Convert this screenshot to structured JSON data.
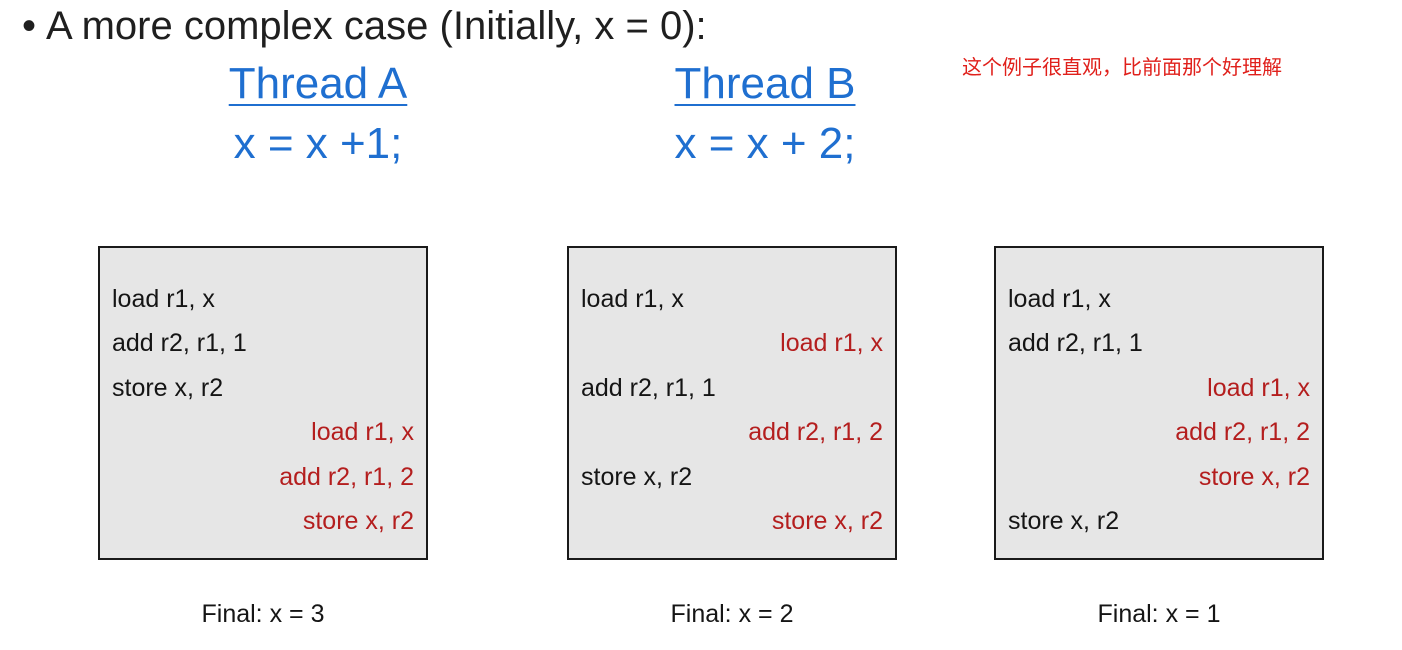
{
  "heading": {
    "bullet": "•",
    "text": "A more complex case (Initially, x = 0):"
  },
  "threads": [
    {
      "title": "Thread A",
      "code": "x = x +1;"
    },
    {
      "title": "Thread B",
      "code": "x = x + 2;"
    }
  ],
  "note": "这个例子很直观，比前面那个好理解",
  "colors": {
    "thread_blue": "#1f6fd0",
    "thread_b_red": "#b41e1e",
    "note_red": "#e0201b",
    "box_fill": "#e6e6e6"
  },
  "interleavings": [
    {
      "lines": [
        {
          "text": "load r1, x",
          "thread": "A"
        },
        {
          "text": "add r2, r1, 1",
          "thread": "A"
        },
        {
          "text": "store x, r2",
          "thread": "A"
        },
        {
          "text": "load r1, x",
          "thread": "B"
        },
        {
          "text": "add r2, r1, 2",
          "thread": "B"
        },
        {
          "text": "store x, r2",
          "thread": "B"
        }
      ],
      "final": "Final: x = 3"
    },
    {
      "lines": [
        {
          "text": "load r1, x",
          "thread": "A"
        },
        {
          "text": "load r1, x",
          "thread": "B"
        },
        {
          "text": "add r2, r1, 1",
          "thread": "A"
        },
        {
          "text": "add r2, r1, 2",
          "thread": "B"
        },
        {
          "text": "store x, r2",
          "thread": "A"
        },
        {
          "text": "store x, r2",
          "thread": "B"
        }
      ],
      "final": "Final: x = 2"
    },
    {
      "lines": [
        {
          "text": "load r1, x",
          "thread": "A"
        },
        {
          "text": "add r2, r1, 1",
          "thread": "A"
        },
        {
          "text": "load r1, x",
          "thread": "B"
        },
        {
          "text": "add r2, r1, 2",
          "thread": "B"
        },
        {
          "text": "store x, r2",
          "thread": "B"
        },
        {
          "text": "store x, r2",
          "thread": "A"
        }
      ],
      "final": "Final: x = 1"
    }
  ]
}
